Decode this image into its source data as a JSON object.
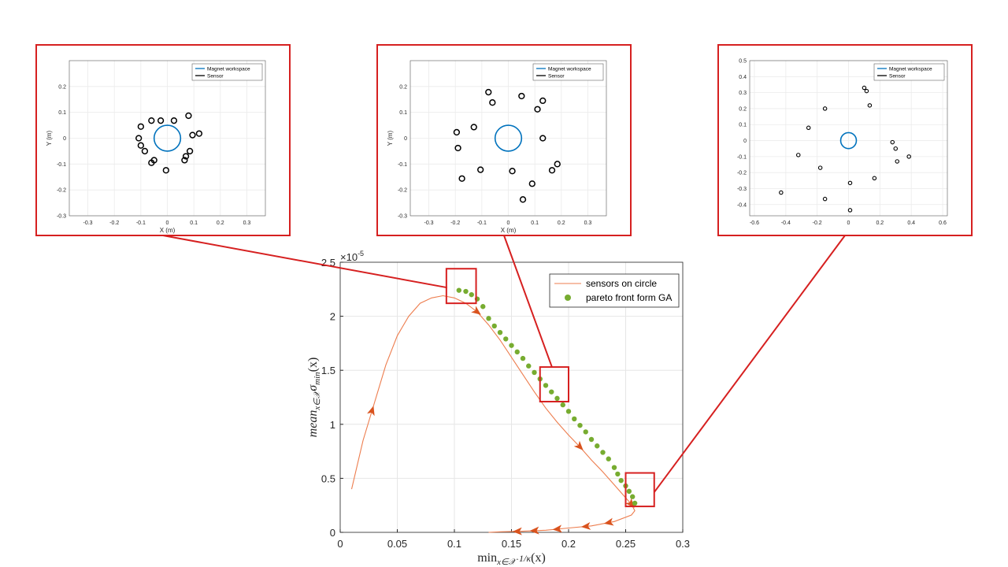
{
  "chart_data": [
    {
      "id": "main",
      "type": "line",
      "xlabel": "min_{x∈𝒳} 1/κ(x)",
      "xlabel_parts": {
        "prefix": "min",
        "sub": "x∈𝒳",
        "num": "1",
        "den": "κ",
        "suffix": "(x)"
      },
      "ylabel": "mean_{x∈𝒳} σ_min(x)",
      "ylabel_parts": {
        "prefix": "mean",
        "sub": "x∈𝒳",
        "mid": "σ",
        "sub2": "min",
        "suffix": "(x)"
      },
      "xlim": [
        0,
        0.3
      ],
      "ylim": [
        0,
        2.5
      ],
      "y_exponent_label": "×10",
      "y_exponent": "-5",
      "xticks": [
        0,
        0.05,
        0.1,
        0.15,
        0.2,
        0.25,
        0.3
      ],
      "xtick_labels": [
        "0",
        "0.05",
        "0.1",
        "0.15",
        "0.2",
        "0.25",
        "0.3"
      ],
      "yticks": [
        0,
        0.5,
        1,
        1.5,
        2,
        2.5
      ],
      "ytick_labels": [
        "0",
        "0.5",
        "1",
        "1.5",
        "2",
        "2.5"
      ],
      "grid": true,
      "legend_position": "top-right",
      "series": [
        {
          "name": "sensors on circle",
          "kind": "line",
          "color": "#ED7D4E",
          "x": [
            0.01,
            0.02,
            0.03,
            0.04,
            0.05,
            0.06,
            0.07,
            0.08,
            0.09,
            0.1,
            0.11,
            0.12,
            0.13,
            0.14,
            0.15,
            0.16,
            0.17,
            0.18,
            0.19,
            0.2,
            0.21,
            0.22,
            0.23,
            0.24,
            0.25,
            0.255,
            0.258,
            0.255,
            0.24,
            0.22,
            0.2,
            0.18,
            0.16,
            0.14,
            0.13
          ],
          "y": [
            0.4,
            0.85,
            1.2,
            1.55,
            1.82,
            2.0,
            2.12,
            2.17,
            2.19,
            2.17,
            2.12,
            2.04,
            1.92,
            1.78,
            1.62,
            1.46,
            1.3,
            1.15,
            1.02,
            0.9,
            0.79,
            0.67,
            0.56,
            0.44,
            0.32,
            0.26,
            0.2,
            0.16,
            0.1,
            0.06,
            0.04,
            0.02,
            0.01,
            0.005,
            0.0
          ],
          "arrows_at_x": [
            0.028,
            0.12,
            0.21,
            0.255,
            0.235,
            0.215,
            0.19,
            0.17,
            0.155
          ]
        },
        {
          "name": "pareto front form GA",
          "kind": "scatter",
          "color": "#77AC30",
          "x": [
            0.104,
            0.11,
            0.115,
            0.12,
            0.125,
            0.13,
            0.135,
            0.14,
            0.145,
            0.15,
            0.155,
            0.16,
            0.165,
            0.17,
            0.175,
            0.18,
            0.185,
            0.19,
            0.195,
            0.2,
            0.205,
            0.21,
            0.215,
            0.22,
            0.225,
            0.23,
            0.235,
            0.24,
            0.243,
            0.246,
            0.25,
            0.253,
            0.256,
            0.258
          ],
          "y": [
            2.24,
            2.23,
            2.2,
            2.16,
            2.09,
            1.98,
            1.91,
            1.85,
            1.79,
            1.73,
            1.67,
            1.61,
            1.54,
            1.48,
            1.42,
            1.36,
            1.3,
            1.24,
            1.18,
            1.12,
            1.05,
            0.99,
            0.93,
            0.86,
            0.8,
            0.74,
            0.68,
            0.6,
            0.54,
            0.48,
            0.43,
            0.38,
            0.33,
            0.27
          ]
        }
      ],
      "highlight_boxes": [
        {
          "x": [
            0.093,
            0.119
          ],
          "y": [
            2.12,
            2.44
          ]
        },
        {
          "x": [
            0.175,
            0.2
          ],
          "y": [
            1.21,
            1.53
          ]
        },
        {
          "x": [
            0.25,
            0.275
          ],
          "y": [
            0.24,
            0.55
          ]
        }
      ]
    },
    {
      "id": "inset-1",
      "type": "scatter",
      "xlabel": "X (m)",
      "ylabel": "Y (m)",
      "xlim": [
        -0.37,
        0.37
      ],
      "ylim": [
        -0.3,
        0.3
      ],
      "xticks": [
        -0.3,
        -0.2,
        -0.1,
        0,
        0.1,
        0.2,
        0.3
      ],
      "xtick_labels": [
        "-0.3",
        "-0.2",
        "-0.1",
        "0",
        "0.1",
        "0.2",
        "0.3"
      ],
      "yticks": [
        -0.3,
        -0.2,
        -0.1,
        0,
        0.1,
        0.2
      ],
      "ytick_labels": [
        "-0.3",
        "-0.2",
        "-0.1",
        "0",
        "0.1",
        "0.2"
      ],
      "grid": true,
      "legend_position": "top-right",
      "legend": [
        "Magnet workspace",
        "Sensor"
      ],
      "workspace_radius": 0.05,
      "sensors_x": [
        -0.1,
        -0.06,
        -0.025,
        0.025,
        0.08,
        0.12,
        0.095,
        0.085,
        0.07,
        0.065,
        -0.005,
        -0.05,
        -0.06,
        -0.085,
        -0.1,
        -0.108
      ],
      "sensors_y": [
        0.045,
        0.068,
        0.068,
        0.068,
        0.087,
        0.018,
        0.012,
        -0.05,
        -0.07,
        -0.085,
        -0.124,
        -0.085,
        -0.095,
        -0.05,
        -0.028,
        0.0
      ]
    },
    {
      "id": "inset-2",
      "type": "scatter",
      "xlabel": "X (m)",
      "ylabel": "Y (m)",
      "xlim": [
        -0.37,
        0.37
      ],
      "ylim": [
        -0.3,
        0.3
      ],
      "xticks": [
        -0.3,
        -0.2,
        -0.1,
        0,
        0.1,
        0.2,
        0.3
      ],
      "xtick_labels": [
        "-0.3",
        "-0.2",
        "-0.1",
        "0",
        "0.1",
        "0.2",
        "0.3"
      ],
      "yticks": [
        -0.3,
        -0.2,
        -0.1,
        0,
        0.1,
        0.2
      ],
      "ytick_labels": [
        "-0.3",
        "-0.2",
        "-0.1",
        "0",
        "0.1",
        "0.2"
      ],
      "grid": true,
      "legend_position": "top-right",
      "legend": [
        "Magnet workspace",
        "Sensor"
      ],
      "workspace_radius": 0.05,
      "sensors_x": [
        -0.075,
        -0.06,
        0.05,
        0.13,
        0.11,
        -0.13,
        -0.195,
        -0.19,
        0.13,
        0.185,
        0.165,
        -0.105,
        0.015,
        -0.175,
        0.09,
        0.055
      ],
      "sensors_y": [
        0.178,
        0.138,
        0.163,
        0.145,
        0.112,
        0.043,
        0.023,
        -0.038,
        0.0,
        -0.1,
        -0.124,
        -0.122,
        -0.127,
        -0.156,
        -0.176,
        -0.237
      ]
    },
    {
      "id": "inset-3",
      "type": "scatter",
      "xlabel": "",
      "ylabel": "",
      "xlim": [
        -0.63,
        0.63
      ],
      "ylim": [
        -0.47,
        0.5
      ],
      "xticks": [
        -0.6,
        -0.4,
        -0.2,
        0,
        0.2,
        0.4,
        0.6
      ],
      "xtick_labels": [
        "-0.6",
        "-0.4",
        "-0.2",
        "0",
        "0.2",
        "0.4",
        "0.6"
      ],
      "yticks": [
        -0.4,
        -0.3,
        -0.2,
        -0.1,
        0,
        0.1,
        0.2,
        0.3,
        0.4,
        0.5
      ],
      "ytick_labels": [
        "-0.4",
        "-0.3",
        "-0.2",
        "-0.1",
        "0",
        "0.1",
        "0.2",
        "0.3",
        "0.4",
        "0.5"
      ],
      "grid": true,
      "legend_position": "top-right",
      "legend": [
        "Magnet workspace",
        "Sensor"
      ],
      "workspace_radius": 0.05,
      "sensors_x": [
        0.1,
        0.115,
        0.135,
        -0.15,
        -0.255,
        0.28,
        0.3,
        -0.32,
        0.385,
        0.31,
        -0.18,
        0.165,
        0.01,
        -0.43,
        -0.15,
        0.01
      ],
      "sensors_y": [
        0.33,
        0.31,
        0.22,
        0.2,
        0.08,
        -0.01,
        -0.05,
        -0.09,
        -0.1,
        -0.13,
        -0.17,
        -0.235,
        -0.265,
        -0.325,
        -0.365,
        -0.435
      ]
    }
  ],
  "colors": {
    "highlight_red": "#D62020",
    "workspace_blue": "#0072BD",
    "curve_orange": "#ED7D4E",
    "pareto_green": "#77AC30"
  }
}
